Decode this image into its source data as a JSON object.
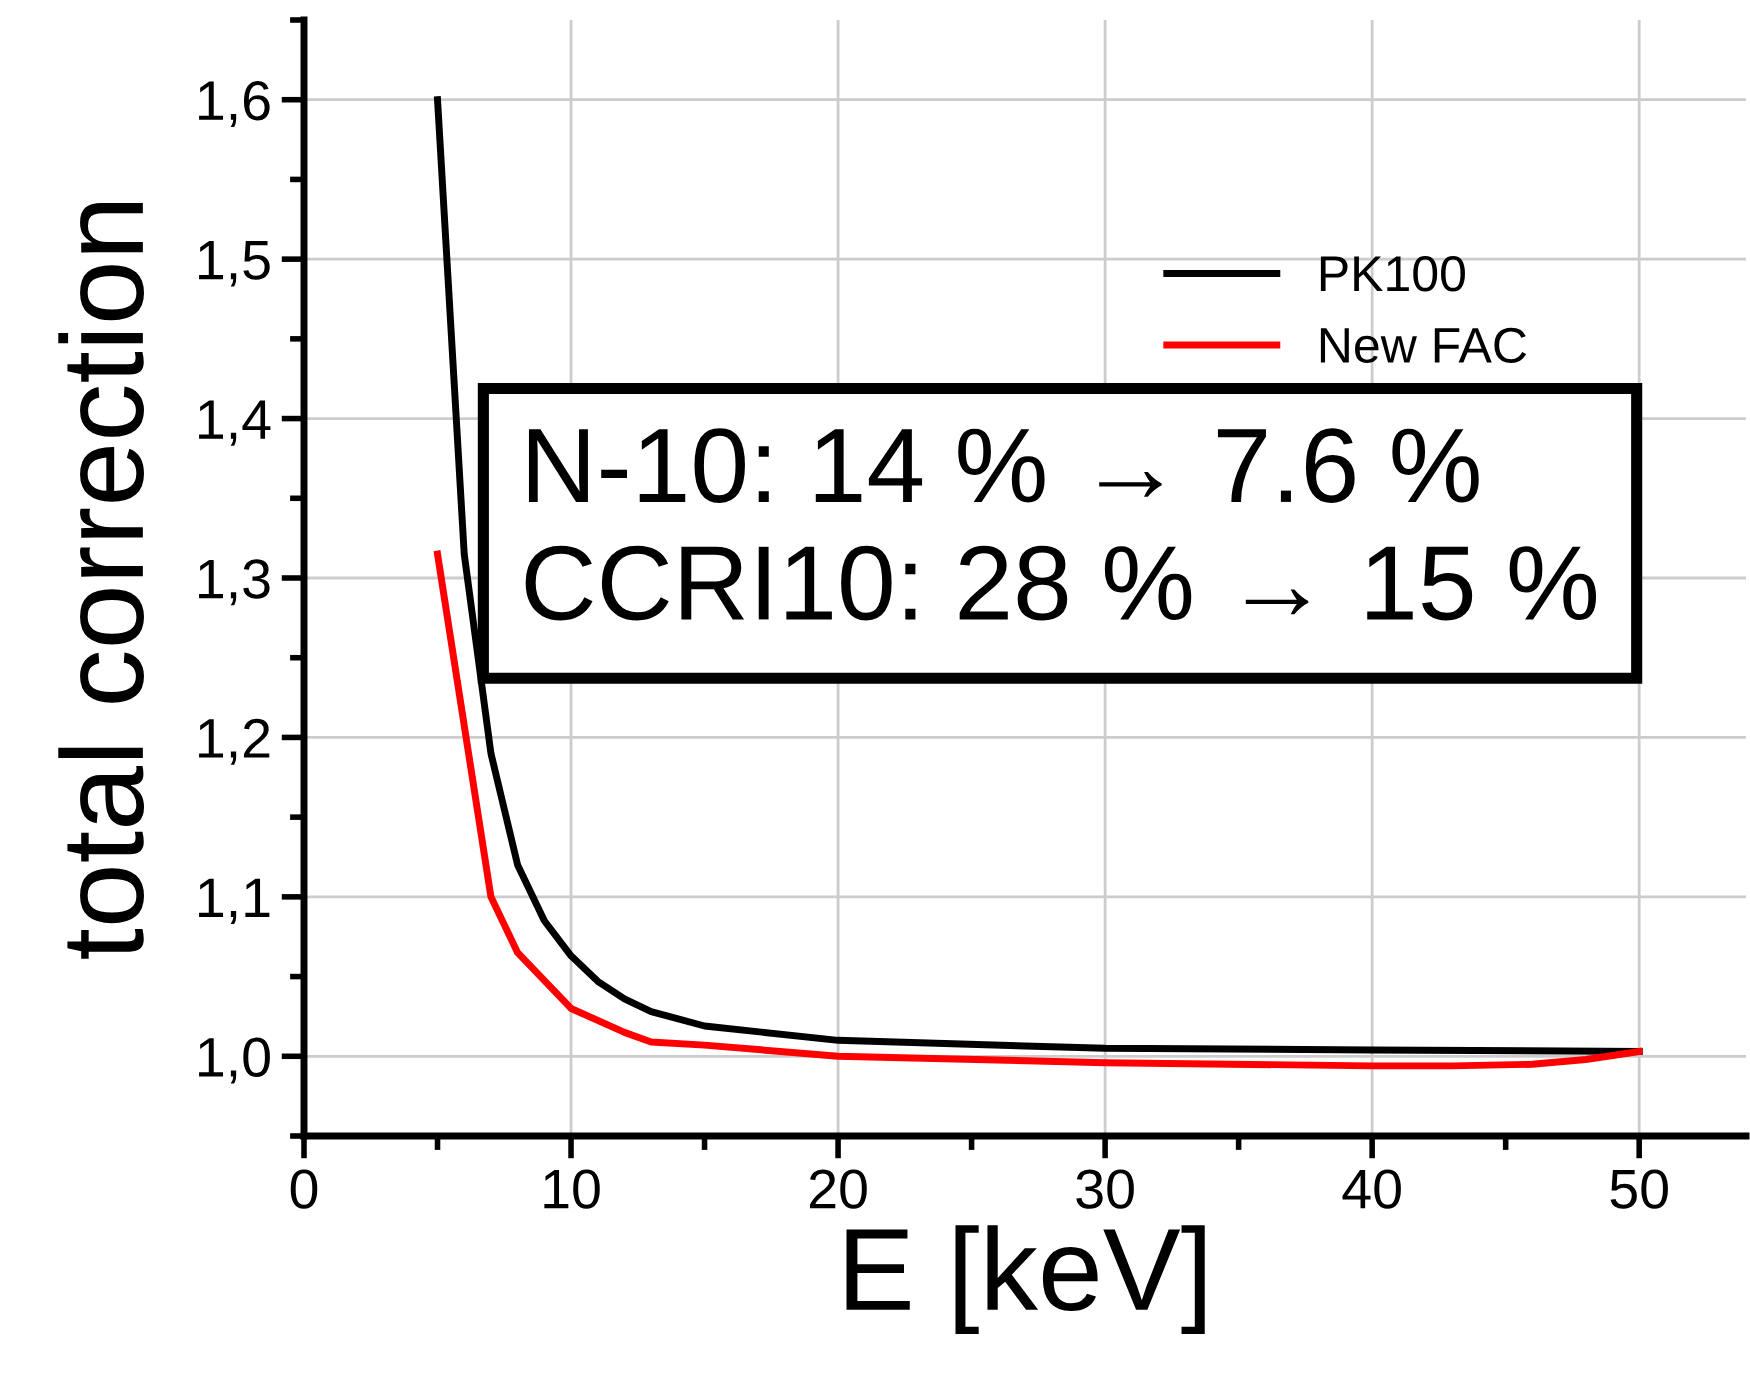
{
  "chart_data": {
    "type": "line",
    "xlabel": "E [keV]",
    "ylabel": "total correction",
    "xlim": [
      0,
      54
    ],
    "xticks": [
      0,
      10,
      20,
      30,
      40,
      50
    ],
    "ylim": [
      0.95,
      1.65
    ],
    "yticks": [
      {
        "value": 1.0,
        "label": "1,0"
      },
      {
        "value": 1.1,
        "label": "1,1"
      },
      {
        "value": 1.2,
        "label": "1,2"
      },
      {
        "value": 1.3,
        "label": "1,3"
      },
      {
        "value": 1.4,
        "label": "1,4"
      },
      {
        "value": 1.5,
        "label": "1,5"
      },
      {
        "value": 1.6,
        "label": "1,6"
      }
    ],
    "grid": true,
    "legend": "top right",
    "marker": "none",
    "line_style": "solid",
    "annotations": [
      "N-10: 14 % → 7.6 %\nCCRI10: 28 % → 15 %"
    ],
    "series": [
      {
        "name": "PK100",
        "color": "#000000",
        "x": [
          5,
          6,
          7,
          8,
          9,
          10,
          11,
          12,
          13,
          15,
          20,
          30,
          40,
          50
        ],
        "values": [
          1.6,
          1.315,
          1.19,
          1.12,
          1.085,
          1.063,
          1.047,
          1.036,
          1.028,
          1.019,
          1.01,
          1.005,
          1.004,
          1.003
        ]
      },
      {
        "name": "New FAC",
        "color": "#ff0000",
        "x": [
          5,
          7,
          8,
          10,
          12,
          13,
          15,
          20,
          30,
          40,
          43,
          46,
          48,
          50
        ],
        "values": [
          1.315,
          1.1,
          1.065,
          1.03,
          1.015,
          1.009,
          1.007,
          1.0,
          0.996,
          0.994,
          0.994,
          0.995,
          0.998,
          1.003
        ]
      }
    ]
  }
}
